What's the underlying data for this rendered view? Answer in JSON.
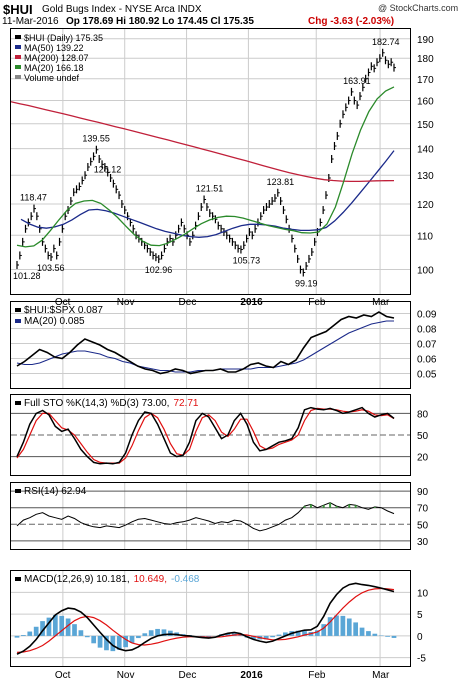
{
  "header": {
    "symbol": "$HUI",
    "name": "Gold Bugs Index - NYSE Arca INDX",
    "watermark": "@ StockCharts.com",
    "date": "11-Mar-2016",
    "ohlc": "Op 178.69 Hi 180.92 Lo 174.45 Cl 175.35",
    "chg": "Chg -3.63 (-2.03%)",
    "chg_color": "#cc0000"
  },
  "colors": {
    "price_bars": "#000000",
    "ma50": "#1b2a8a",
    "ma200": "#c0203a",
    "ma20": "#2a8a2a",
    "ratio_line": "#000000",
    "ratio_ma": "#1b2a8a",
    "sto_k": "#000000",
    "sto_d": "#e01010",
    "rsi": "#000000",
    "macd": "#000000",
    "macd_signal": "#e01010",
    "hist": "#5aa6d6",
    "grid": "#cccccc"
  },
  "months": [
    "Oct",
    "Nov",
    "Dec",
    "2016",
    "Feb",
    "Mar"
  ],
  "chart_data": [
    {
      "type": "line",
      "title": "$HUI (Daily) 175.35",
      "legend": [
        {
          "label": "$HUI (Daily) 175.35",
          "color": "#000000"
        },
        {
          "label": "MA(50) 139.22",
          "color": "#1b2a8a"
        },
        {
          "label": "MA(200) 128.07",
          "color": "#c0203a"
        },
        {
          "label": "MA(20) 166.18",
          "color": "#2a8a2a"
        },
        {
          "label": "Volume undef",
          "color": "#888888"
        }
      ],
      "ylim": [
        95,
        192
      ],
      "yticks": [
        100,
        110,
        120,
        130,
        140,
        150,
        160,
        170,
        180,
        190
      ],
      "scale": "log",
      "series": [
        {
          "name": "$HUI (Daily)",
          "values": [
            101.28,
            104,
            108,
            112,
            114,
            116,
            118.47,
            116,
            112,
            108,
            106,
            104,
            103.56,
            106,
            104,
            108,
            112,
            116,
            118,
            121,
            124,
            125,
            126,
            128.12,
            130,
            133,
            135,
            137,
            139.55,
            136,
            134,
            133,
            131,
            129,
            127,
            125,
            123,
            120,
            118,
            116,
            114,
            112,
            110,
            109,
            108,
            107,
            106,
            105,
            104,
            103.5,
            102.96,
            104,
            106,
            108,
            109,
            108,
            110,
            112,
            114,
            112,
            110,
            108,
            110,
            113,
            116,
            119,
            121.51,
            119,
            117,
            116,
            115,
            113,
            112,
            111,
            110,
            109,
            108,
            107,
            106,
            105.73,
            107,
            109,
            111,
            110,
            112,
            114,
            116,
            118,
            119,
            120,
            121,
            122,
            123.81,
            121,
            118,
            115,
            112,
            109,
            106,
            103,
            100,
            99.19,
            101,
            103,
            105,
            108,
            111,
            114,
            118,
            123,
            129,
            136,
            141,
            145,
            150,
            154,
            157,
            160,
            163.91,
            160,
            158,
            162,
            166,
            170,
            173,
            176,
            175,
            178,
            180,
            182.74,
            179,
            177,
            178,
            175.35
          ]
        },
        {
          "name": "MA(50)",
          "values": [
            115,
            113.5,
            112.5,
            112.2,
            112.6,
            113.4,
            114.8,
            116.5,
            118,
            118.2,
            117.8,
            117,
            116,
            115,
            114,
            113,
            112,
            111.2,
            110.6,
            110,
            109.6,
            109.4,
            109.6,
            110.2,
            111.2,
            112.2,
            113,
            113.4,
            113.4,
            113.2,
            112.8,
            112.2,
            111.8,
            111.5,
            111.5,
            111.7,
            112.4,
            114.5,
            117.2,
            120.3,
            123.8,
            127.4,
            131.1,
            135,
            139.22
          ]
        },
        {
          "name": "MA(200)",
          "values": [
            159.5,
            158.6,
            157.8,
            156.9,
            156,
            155.1,
            154.2,
            153.3,
            152.4,
            151.5,
            150.6,
            149.7,
            148.8,
            147.9,
            147,
            146.1,
            145.2,
            144.3,
            143.4,
            142.5,
            141.6,
            140.7,
            139.8,
            138.9,
            138,
            137.1,
            136.2,
            135.3,
            134.4,
            133.5,
            132.6,
            131.7,
            130.9,
            130.2,
            129.5,
            128.9,
            128.4,
            128.1,
            127.9,
            127.8,
            127.8,
            127.9,
            128,
            128.05,
            128.07
          ]
        },
        {
          "name": "MA(20)",
          "values": [
            107,
            106.5,
            106.8,
            108.5,
            111.5,
            114.8,
            118,
            120.2,
            121,
            121.2,
            120.2,
            118,
            115.6,
            112.8,
            110.2,
            108.2,
            107,
            106.9,
            107.6,
            108.9,
            110.3,
            112,
            113.6,
            114.8,
            115.6,
            116,
            115.9,
            115.4,
            114.6,
            113.8,
            113,
            112.4,
            111.8,
            111.4,
            110.8,
            110.7,
            111,
            113.5,
            119,
            127.8,
            138,
            147.4,
            155.2,
            160.8,
            164.3,
            166.18
          ]
        }
      ]
    },
    {
      "type": "line",
      "title": "$HUI:$SPX 0.087",
      "legend": [
        {
          "label": "$HUI:$SPX 0.087",
          "color": "#000000"
        },
        {
          "label": "MA(20) 0.085",
          "color": "#1b2a8a"
        }
      ],
      "ylim": [
        0.043,
        0.095
      ],
      "yticks": [
        0.05,
        0.06,
        0.07,
        0.08,
        0.09
      ],
      "series": [
        {
          "name": "$HUI:$SPX",
          "values": [
            0.055,
            0.058,
            0.062,
            0.066,
            0.064,
            0.061,
            0.06,
            0.064,
            0.069,
            0.073,
            0.071,
            0.069,
            0.066,
            0.064,
            0.061,
            0.058,
            0.055,
            0.053,
            0.052,
            0.05,
            0.051,
            0.053,
            0.052,
            0.05,
            0.051,
            0.052,
            0.052,
            0.053,
            0.051,
            0.051,
            0.053,
            0.056,
            0.057,
            0.055,
            0.054,
            0.058,
            0.056,
            0.059,
            0.067,
            0.074,
            0.076,
            0.078,
            0.082,
            0.086,
            0.088,
            0.087,
            0.089,
            0.088,
            0.091,
            0.088,
            0.087
          ]
        },
        {
          "name": "MA(20)",
          "values": [
            0.057,
            0.056,
            0.056,
            0.057,
            0.059,
            0.061,
            0.063,
            0.064,
            0.065,
            0.065,
            0.064,
            0.063,
            0.061,
            0.06,
            0.058,
            0.057,
            0.055,
            0.054,
            0.053,
            0.052,
            0.052,
            0.051,
            0.051,
            0.051,
            0.052,
            0.052,
            0.052,
            0.053,
            0.053,
            0.053,
            0.053,
            0.053,
            0.054,
            0.054,
            0.054,
            0.055,
            0.056,
            0.057,
            0.059,
            0.062,
            0.065,
            0.068,
            0.071,
            0.074,
            0.077,
            0.079,
            0.081,
            0.083,
            0.084,
            0.085,
            0.085
          ]
        }
      ]
    },
    {
      "type": "line",
      "title": "Full STO %K(14,3) %D(3) 73.00, 72.71",
      "legend": [
        {
          "label": "Full STO %K(14,3) %D(3) 73.00,",
          "color": "#000000"
        },
        {
          "label": "72.71",
          "color": "#e01010"
        }
      ],
      "ylim": [
        0,
        100
      ],
      "yticks": [
        20,
        50,
        80
      ],
      "series": [
        {
          "name": "%K",
          "values": [
            20,
            40,
            65,
            80,
            84,
            78,
            62,
            55,
            58,
            45,
            30,
            20,
            12,
            10,
            11,
            10,
            12,
            25,
            50,
            70,
            82,
            80,
            65,
            45,
            25,
            20,
            22,
            40,
            70,
            80,
            75,
            60,
            45,
            50,
            70,
            80,
            65,
            40,
            28,
            30,
            35,
            40,
            42,
            45,
            60,
            85,
            88,
            86,
            85,
            87,
            84,
            80,
            82,
            85,
            88,
            80,
            75,
            78,
            80,
            73
          ]
        },
        {
          "name": "%D",
          "values": [
            18,
            30,
            50,
            70,
            80,
            80,
            70,
            60,
            57,
            50,
            38,
            26,
            16,
            12,
            11,
            11,
            11,
            18,
            35,
            56,
            74,
            80,
            74,
            58,
            38,
            24,
            22,
            30,
            55,
            74,
            78,
            70,
            54,
            48,
            58,
            72,
            72,
            55,
            35,
            30,
            32,
            37,
            40,
            43,
            50,
            70,
            84,
            87,
            86,
            86,
            85,
            83,
            82,
            83,
            85,
            83,
            78,
            77,
            78,
            72.71
          ]
        }
      ]
    },
    {
      "type": "line",
      "title": "RSI(14) 62.94",
      "legend": [
        {
          "label": "RSI(14) 62.94",
          "color": "#000000"
        }
      ],
      "ylim": [
        25,
        95
      ],
      "yticks": [
        30,
        50,
        70,
        90
      ],
      "series": [
        {
          "name": "RSI(14)",
          "values": [
            48,
            55,
            58,
            62,
            64,
            60,
            58,
            56,
            60,
            57,
            52,
            49,
            47,
            46,
            48,
            47,
            46,
            49,
            53,
            56,
            57,
            55,
            53,
            51,
            50,
            52,
            53,
            55,
            58,
            56,
            54,
            51,
            53,
            52,
            55,
            54,
            50,
            45,
            42,
            44,
            47,
            50,
            55,
            58,
            64,
            72,
            74,
            70,
            73,
            76,
            72,
            70,
            74,
            73,
            70,
            68,
            71,
            70,
            66,
            62.94
          ]
        }
      ]
    },
    {
      "type": "bar",
      "title": "MACD(12,26,9) 10.181, 10.649, -0.468",
      "legend": [
        {
          "label": "MACD(12,26,9) 10.181,",
          "color": "#000000"
        },
        {
          "label": "10.649,",
          "color": "#e01010"
        },
        {
          "label": "-0.468",
          "color": "#5aa6d6"
        }
      ],
      "ylim": [
        -6,
        14
      ],
      "yticks": [
        -5,
        0,
        5,
        10
      ],
      "series": [
        {
          "name": "MACD",
          "values": [
            -4.2,
            -3.5,
            -2.4,
            -0.8,
            1.2,
            3,
            4.8,
            5.8,
            6.4,
            6.2,
            5.5,
            4.2,
            2.5,
            0.8,
            -0.8,
            -2.2,
            -3,
            -3.4,
            -3.2,
            -2.5,
            -1.5,
            -0.6,
            0,
            0.3,
            0.4,
            0.3,
            0.1,
            0,
            -0.2,
            -0.4,
            -0.5,
            -0.3,
            0.2,
            0.6,
            0.8,
            0.5,
            -0.2,
            -0.8,
            -1.2,
            -1.5,
            -1.2,
            -0.6,
            0,
            0.6,
            1,
            1.3,
            1.4,
            2.2,
            4.5,
            7.5,
            9.5,
            11,
            11.8,
            12.1,
            11.8,
            11.6,
            11.3,
            11,
            10.6,
            10.181
          ]
        },
        {
          "name": "Signal",
          "values": [
            -3.8,
            -3.7,
            -3.4,
            -2.9,
            -2.2,
            -1.2,
            0,
            1.2,
            2.4,
            3.5,
            4.2,
            4.5,
            4.2,
            3.5,
            2.5,
            1.3,
            0.2,
            -0.8,
            -1.6,
            -2,
            -2.1,
            -1.9,
            -1.6,
            -1.2,
            -0.8,
            -0.5,
            -0.3,
            -0.2,
            -0.2,
            -0.2,
            -0.3,
            -0.3,
            -0.2,
            0,
            0.2,
            0.3,
            0.2,
            -0.1,
            -0.4,
            -0.7,
            -0.9,
            -0.9,
            -0.8,
            -0.5,
            -0.2,
            0.2,
            0.5,
            0.9,
            1.8,
            3.2,
            4.8,
            6.4,
            7.8,
            9,
            9.9,
            10.5,
            10.8,
            10.9,
            10.8,
            10.649
          ]
        },
        {
          "name": "Histogram",
          "values": [
            -0.4,
            0.2,
            1,
            2.1,
            3.4,
            4.2,
            4.8,
            4.6,
            4,
            2.7,
            1.3,
            -0.3,
            -1.7,
            -2.7,
            -3.3,
            -3.5,
            -3.2,
            -2.6,
            -1.6,
            -0.5,
            0.6,
            1.3,
            1.6,
            1.5,
            1.2,
            0.8,
            0.4,
            0.2,
            0,
            -0.2,
            -0.2,
            0,
            0.4,
            0.6,
            0.6,
            0.2,
            -0.4,
            -0.7,
            -0.8,
            -0.8,
            -0.3,
            0.3,
            0.8,
            1.1,
            1.2,
            1.1,
            0.9,
            1.3,
            2.7,
            4.3,
            4.7,
            4.6,
            4,
            3.1,
            1.9,
            1.1,
            0.5,
            0.1,
            -0.2,
            -0.468
          ]
        }
      ]
    }
  ],
  "annotations": [
    {
      "text": "118.47"
    },
    {
      "text": "139.55"
    },
    {
      "text": "128.12"
    },
    {
      "text": "103.56"
    },
    {
      "text": "101.28"
    },
    {
      "text": "102.96"
    },
    {
      "text": "121.51"
    },
    {
      "text": "105.73"
    },
    {
      "text": "123.81"
    },
    {
      "text": "99.19"
    },
    {
      "text": "163.91"
    },
    {
      "text": "182.74"
    }
  ]
}
